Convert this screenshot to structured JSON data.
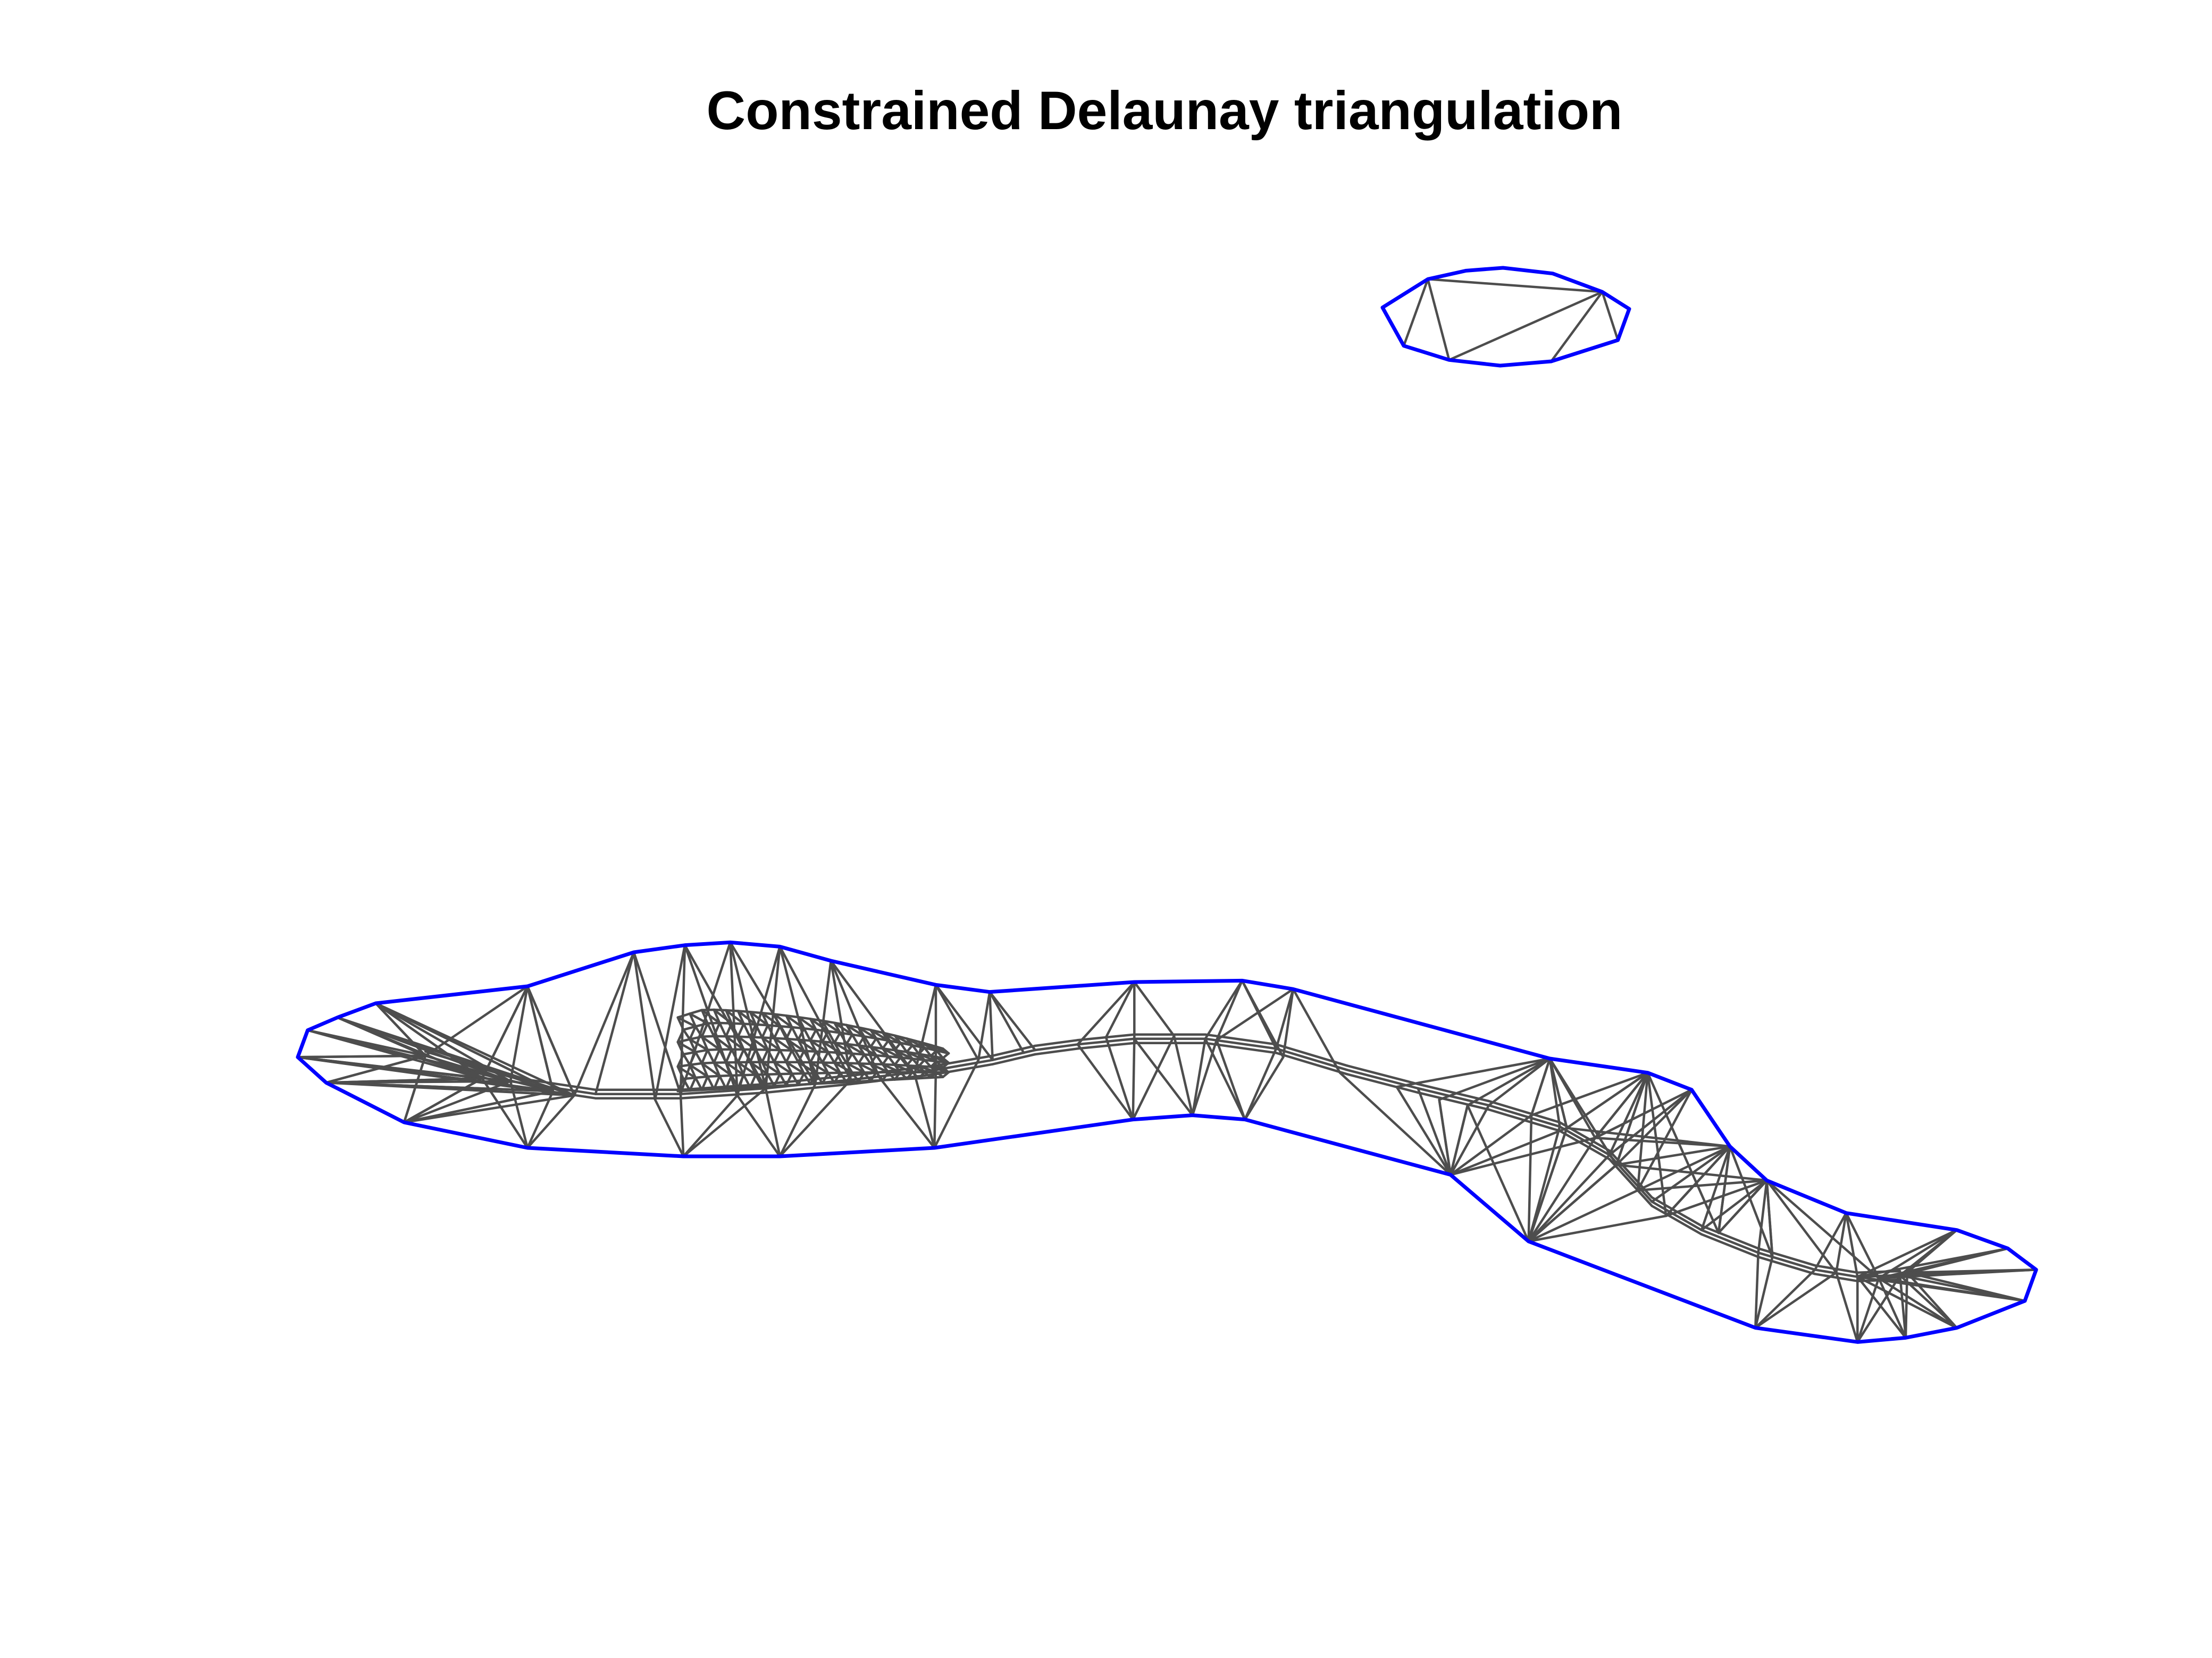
{
  "figure": {
    "title": "Constrained Delaunay triangulation"
  },
  "colors": {
    "boundary": "#0000ff",
    "edges": "#4d4d4d",
    "background": "#ffffff"
  },
  "legend": "none",
  "axes": "hidden"
}
